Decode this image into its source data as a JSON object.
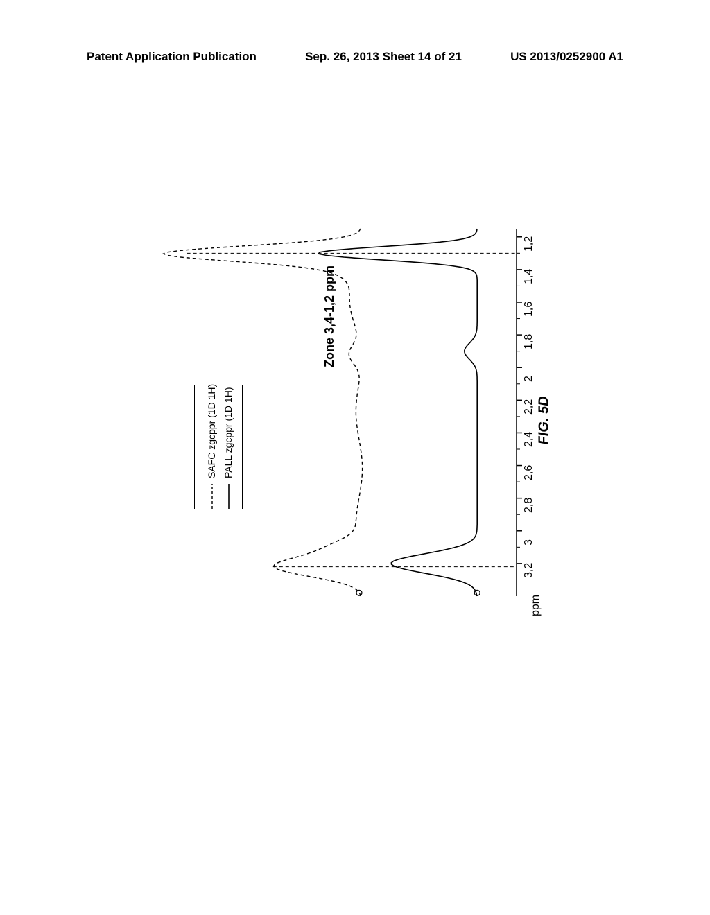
{
  "header": {
    "left": "Patent Application Publication",
    "center": "Sep. 26, 2013  Sheet 14 of 21",
    "right": "US 2013/0252900 A1"
  },
  "chart": {
    "title": "Zone 3,4-1,2 ppm",
    "figure_label": "FIG. 5D",
    "type": "line",
    "orientation": "rotated-90",
    "axis_unit_label": "ppm",
    "x_ticks": [
      "3,2",
      "3",
      "2,8",
      "2,6",
      "2,4",
      "2,2",
      "2",
      "1,8",
      "1,6",
      "1,4",
      "1,2"
    ],
    "x_tick_positions": [
      3.2,
      3.0,
      2.8,
      2.6,
      2.4,
      2.2,
      2.0,
      1.8,
      1.6,
      1.4,
      1.2
    ],
    "xlim": [
      3.4,
      1.15
    ],
    "legend": [
      {
        "label": "SAFC zgcppr (1D 1H)",
        "style": "dashed",
        "color": "#000000"
      },
      {
        "label": "PALL zgcppr (1D 1H)",
        "style": "solid",
        "color": "#000000"
      }
    ],
    "colors": {
      "background": "#ffffff",
      "line": "#000000",
      "axis": "#000000",
      "text": "#000000"
    },
    "line_width": 1.6,
    "font_size_ticks": 16,
    "font_size_title": 18,
    "font_size_legend": 14,
    "series": {
      "safc": {
        "baseline_y": 0.45,
        "peaks": [
          {
            "x": 3.35,
            "y_start": 0.45,
            "rise_to_x": 3.25,
            "y": 0.55,
            "notes": "left rise"
          },
          {
            "x": 3.2,
            "y": 0.7,
            "dash_down": true
          },
          {
            "x": 3.1,
            "y": 0.48
          },
          {
            "x": 1.92,
            "y": 0.5,
            "small_bump": true
          },
          {
            "x": 1.35,
            "y": 0.48
          },
          {
            "x": 1.3,
            "y": 0.98,
            "dash_down": true
          },
          {
            "x": 1.2,
            "y": 0.38
          }
        ]
      },
      "pall": {
        "baseline_y": 0.08,
        "peaks": [
          {
            "x": 3.35,
            "y": 0.14
          },
          {
            "x": 3.2,
            "y": 0.35
          },
          {
            "x": 3.05,
            "y": 0.08
          },
          {
            "x": 1.9,
            "y": 0.12
          },
          {
            "x": 1.35,
            "y": 0.09
          },
          {
            "x": 1.3,
            "y": 0.6
          },
          {
            "x": 1.18,
            "y": 0.02
          }
        ]
      }
    },
    "marker_circles": [
      {
        "x": 3.38,
        "y_series": "safc_baseline"
      },
      {
        "x": 3.38,
        "y_series": "pall_baseline"
      }
    ]
  }
}
